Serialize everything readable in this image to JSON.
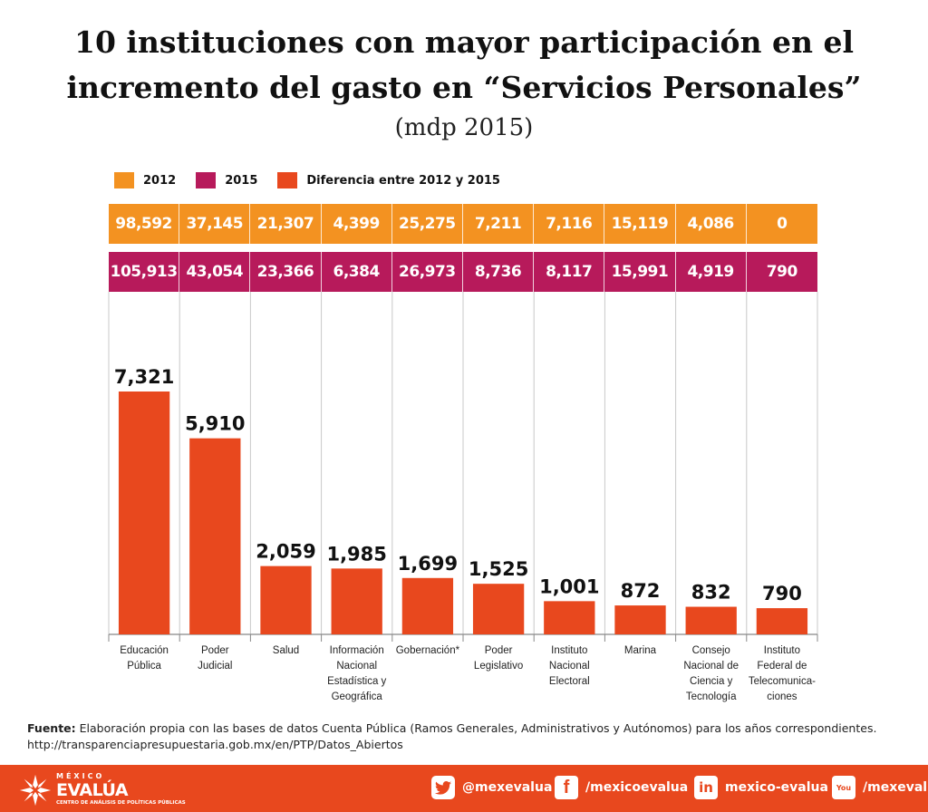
{
  "title_line1": "10 instituciones con mayor participación en el",
  "title_line2": "incremento del gasto en “Servicios Personales”",
  "subtitle": "(mdp 2015)",
  "legend": [
    {
      "label": "2012",
      "color": "#f39221"
    },
    {
      "label": "2015",
      "color": "#b71a5b"
    },
    {
      "label": "Diferencia entre 2012 y 2015",
      "color": "#e8481e"
    }
  ],
  "chart_data": {
    "type": "bar",
    "title": "10 instituciones con mayor participación en el incremento del gasto en “Servicios Personales”",
    "subtitle": "(mdp 2015)",
    "categories": [
      [
        "Educación",
        "Pública"
      ],
      [
        "Poder",
        "Judicial"
      ],
      [
        "Salud"
      ],
      [
        "Información",
        "Nacional",
        "Estadística y",
        "Geográfica"
      ],
      [
        "Gobernación*"
      ],
      [
        "Poder",
        "Legislativo"
      ],
      [
        "Instituto",
        "Nacional",
        "Electoral"
      ],
      [
        "Marina"
      ],
      [
        "Consejo",
        "Nacional de",
        "Ciencia y",
        "Tecnología"
      ],
      [
        "Instituto",
        "Federal de",
        "Telecomunica-",
        "ciones"
      ]
    ],
    "series": [
      {
        "name": "2012",
        "values": [
          "98,592",
          "37,145",
          "21,307",
          "4,399",
          "25,275",
          "7,211",
          "7,116",
          "15,119",
          "4,086",
          "0"
        ]
      },
      {
        "name": "2015",
        "values": [
          "105,913",
          "43,054",
          "23,366",
          "6,384",
          "26,973",
          "8,736",
          "8,117",
          "15,991",
          "4,919",
          "790"
        ]
      },
      {
        "name": "Diferencia entre 2012 y 2015",
        "values": [
          7321,
          5910,
          2059,
          1985,
          1699,
          1525,
          1001,
          872,
          832,
          790
        ]
      }
    ],
    "value_labels": [
      "7,321",
      "5,910",
      "2,059",
      "1,985",
      "1,699",
      "1,525",
      "1,001",
      "872",
      "832",
      "790"
    ],
    "ylim": [
      0,
      10000
    ],
    "bar_color": "#e8481e",
    "grid": false
  },
  "source_label": "Fuente:",
  "source_text": " Elaboración propia con las bases de datos Cuenta Pública (Ramos Generales, Administrativos y Autónomos) para los años correspondientes.",
  "source_url": "http://transparenciapresupuestaria.gob.mx/en/PTP/Datos_Abiertos",
  "brand": {
    "line1": "MÉXICO",
    "line2": "EVALÚA",
    "line3": "CENTRO DE ANÁLISIS DE POLÍTICAS PÚBLICAS"
  },
  "social": [
    {
      "icon": "twitter-icon",
      "glyph": "t",
      "label": "@mexevalua"
    },
    {
      "icon": "facebook-icon",
      "glyph": "f",
      "label": "/mexicoevalua"
    },
    {
      "icon": "linkedin-icon",
      "glyph": "in",
      "label": "mexico-evalua"
    },
    {
      "icon": "youtube-icon",
      "glyph": "You",
      "label": "/mexeval"
    }
  ]
}
